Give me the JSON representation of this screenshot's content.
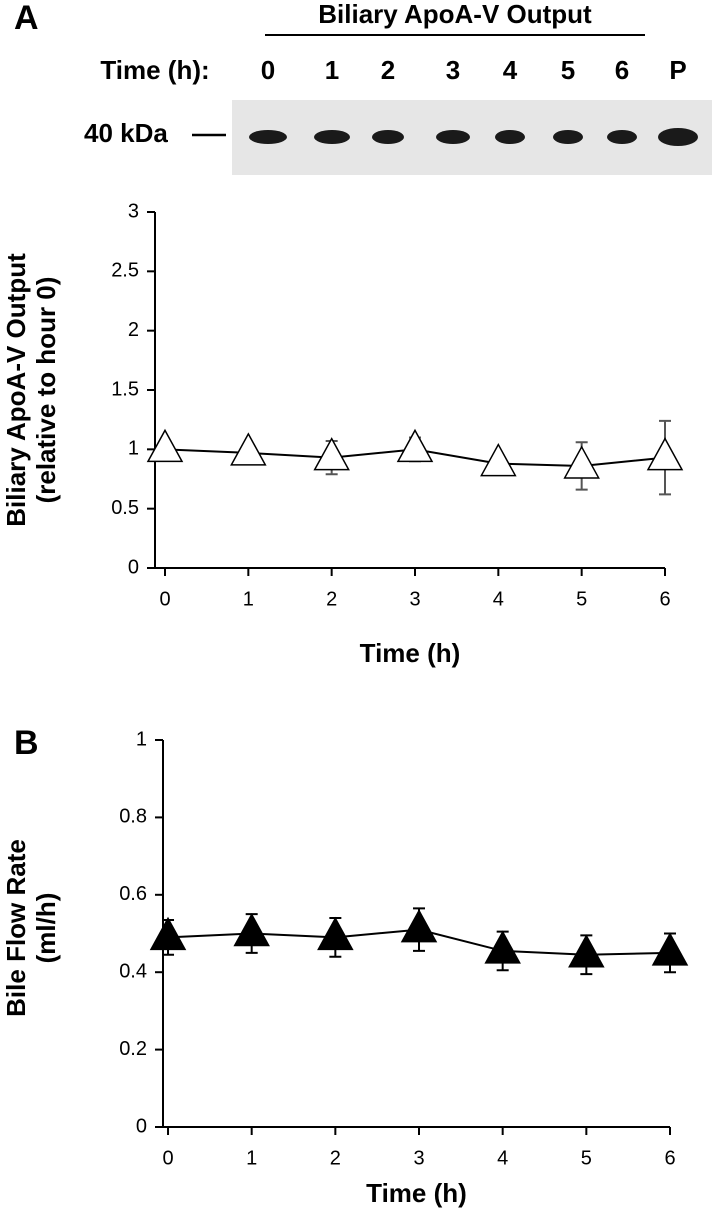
{
  "blot": {
    "title": "Biliary ApoA-V Output",
    "time_label": "Time (h):",
    "lanes": [
      "0",
      "1",
      "2",
      "3",
      "4",
      "5",
      "6",
      "P"
    ],
    "marker": "40 kDa"
  },
  "chart_data": [
    {
      "type": "line",
      "panel": "A",
      "xlabel": "Time (h)",
      "ylabel": [
        "Biliary ApoA-V Output",
        "(relative to hour 0)"
      ],
      "x": [
        0,
        1,
        2,
        3,
        4,
        5,
        6
      ],
      "xlim": [
        -0.12,
        6
      ],
      "xticks": [
        0,
        1,
        2,
        3,
        4,
        5,
        6
      ],
      "ylim": [
        0,
        3
      ],
      "yticks": [
        0,
        0.5,
        1,
        1.5,
        2,
        2.5,
        3
      ],
      "series": [
        {
          "color": "#000000",
          "marker": "triangle",
          "marker_fill": "#ffffff",
          "error_color": "#555555",
          "values": [
            1.0,
            0.97,
            0.93,
            1.0,
            0.88,
            0.86,
            0.93
          ],
          "errors": [
            0.05,
            0.05,
            0.14,
            0.1,
            0.05,
            0.2,
            0.31
          ]
        }
      ]
    },
    {
      "type": "line",
      "panel": "B",
      "xlabel": "Time (h)",
      "ylabel": [
        "Bile Flow Rate",
        "(ml/h)"
      ],
      "x": [
        0,
        1,
        2,
        3,
        4,
        5,
        6
      ],
      "xlim": [
        -0.06,
        6
      ],
      "xticks": [
        0,
        1,
        2,
        3,
        4,
        5,
        6
      ],
      "ylim": [
        0,
        1
      ],
      "yticks": [
        0,
        0.2,
        0.4,
        0.6,
        0.8,
        1
      ],
      "series": [
        {
          "color": "#000000",
          "marker": "triangle",
          "marker_fill": "#000000",
          "error_color": "#000000",
          "values": [
            0.49,
            0.5,
            0.49,
            0.51,
            0.455,
            0.445,
            0.45
          ],
          "errors": [
            0.045,
            0.05,
            0.05,
            0.055,
            0.05,
            0.05,
            0.05
          ]
        }
      ]
    }
  ]
}
